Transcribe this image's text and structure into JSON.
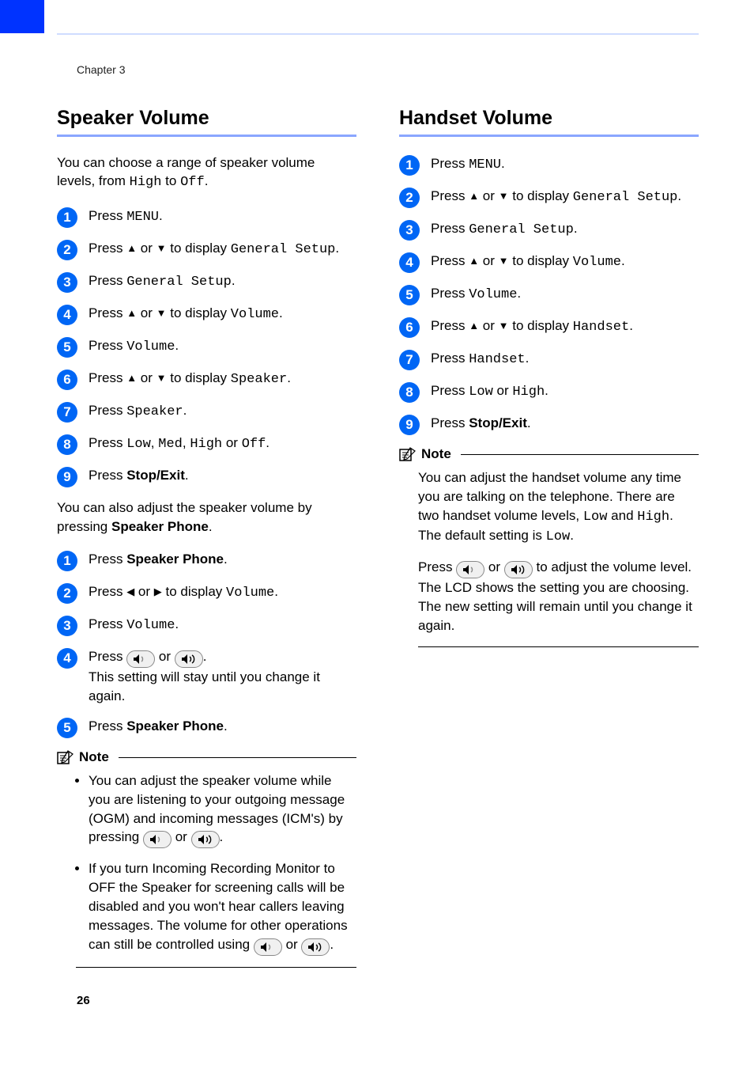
{
  "chapter_label": "Chapter 3",
  "page_number": "26",
  "colors": {
    "blue_tab": "#0033ff",
    "sidebar": "#cfdcff",
    "header_rule": "#cfdcff",
    "title_rule": "#8aa6ff",
    "step_circle_bg": "#0066f5",
    "step_circle_text": "#ffffff",
    "body_text": "#000000",
    "background": "#ffffff"
  },
  "left": {
    "title": "Speaker Volume",
    "intro_pre": "You can choose a range of speaker volume levels, from ",
    "intro_mono1": "High",
    "intro_mid": " to ",
    "intro_mono2": "Off",
    "intro_post": ".",
    "stepsA": [
      {
        "n": "1",
        "parts": [
          {
            "t": "Press "
          },
          {
            "t": "MENU",
            "mono": true
          },
          {
            "t": "."
          }
        ]
      },
      {
        "n": "2",
        "parts": [
          {
            "t": "Press "
          },
          {
            "t": "▲",
            "arr": true
          },
          {
            "t": " or "
          },
          {
            "t": "▼",
            "arr": true
          },
          {
            "t": " to display "
          },
          {
            "t": "General Setup",
            "mono": true
          },
          {
            "t": "."
          }
        ]
      },
      {
        "n": "3",
        "parts": [
          {
            "t": "Press "
          },
          {
            "t": "General Setup",
            "mono": true
          },
          {
            "t": "."
          }
        ]
      },
      {
        "n": "4",
        "parts": [
          {
            "t": "Press "
          },
          {
            "t": "▲",
            "arr": true
          },
          {
            "t": " or "
          },
          {
            "t": "▼",
            "arr": true
          },
          {
            "t": " to display "
          },
          {
            "t": "Volume",
            "mono": true
          },
          {
            "t": "."
          }
        ]
      },
      {
        "n": "5",
        "parts": [
          {
            "t": "Press "
          },
          {
            "t": "Volume",
            "mono": true
          },
          {
            "t": "."
          }
        ]
      },
      {
        "n": "6",
        "parts": [
          {
            "t": "Press "
          },
          {
            "t": "▲",
            "arr": true
          },
          {
            "t": " or "
          },
          {
            "t": "▼",
            "arr": true
          },
          {
            "t": " to display "
          },
          {
            "t": "Speaker",
            "mono": true
          },
          {
            "t": "."
          }
        ]
      },
      {
        "n": "7",
        "parts": [
          {
            "t": "Press "
          },
          {
            "t": "Speaker",
            "mono": true
          },
          {
            "t": "."
          }
        ]
      },
      {
        "n": "8",
        "parts": [
          {
            "t": "Press "
          },
          {
            "t": "Low",
            "mono": true
          },
          {
            "t": ", "
          },
          {
            "t": "Med",
            "mono": true
          },
          {
            "t": ", "
          },
          {
            "t": "High",
            "mono": true
          },
          {
            "t": " or "
          },
          {
            "t": "Off",
            "mono": true
          },
          {
            "t": "."
          }
        ]
      },
      {
        "n": "9",
        "parts": [
          {
            "t": "Press "
          },
          {
            "t": "Stop/Exit",
            "bold": true
          },
          {
            "t": "."
          }
        ]
      }
    ],
    "para2_pre": "You can also adjust the speaker volume by pressing ",
    "para2_bold": "Speaker Phone",
    "para2_post": ".",
    "stepsB": [
      {
        "n": "1",
        "parts": [
          {
            "t": "Press "
          },
          {
            "t": "Speaker Phone",
            "bold": true
          },
          {
            "t": "."
          }
        ]
      },
      {
        "n": "2",
        "parts": [
          {
            "t": "Press "
          },
          {
            "t": "◀",
            "arr": true
          },
          {
            "t": " or "
          },
          {
            "t": "▶",
            "arr": true
          },
          {
            "t": " to display "
          },
          {
            "t": "Volume",
            "mono": true
          },
          {
            "t": "."
          }
        ]
      },
      {
        "n": "3",
        "parts": [
          {
            "t": "Press "
          },
          {
            "t": "Volume",
            "mono": true
          },
          {
            "t": "."
          }
        ]
      },
      {
        "n": "4",
        "parts": [
          {
            "t": "Press "
          },
          {
            "vol": "down"
          },
          {
            "t": " or "
          },
          {
            "vol": "up"
          },
          {
            "t": "."
          },
          {
            "br": true
          },
          {
            "t": "This setting will stay until you change it again."
          }
        ]
      },
      {
        "n": "5",
        "parts": [
          {
            "t": "Press "
          },
          {
            "t": "Speaker Phone",
            "bold": true
          },
          {
            "t": "."
          }
        ]
      }
    ],
    "note_label": "Note",
    "note_bullets": [
      [
        {
          "t": "You can adjust the speaker volume while you are listening to your outgoing message (OGM) and incoming messages (ICM's) by pressing "
        },
        {
          "vol": "down"
        },
        {
          "t": " or "
        },
        {
          "vol": "up"
        },
        {
          "t": "."
        }
      ],
      [
        {
          "t": "If you turn Incoming Recording Monitor to OFF the Speaker for screening calls will be disabled and you won't hear callers leaving messages. The volume for other operations can still be controlled using "
        },
        {
          "vol": "down"
        },
        {
          "t": " or "
        },
        {
          "vol": "up"
        },
        {
          "t": "."
        }
      ]
    ]
  },
  "right": {
    "title": "Handset Volume",
    "steps": [
      {
        "n": "1",
        "parts": [
          {
            "t": "Press "
          },
          {
            "t": "MENU",
            "mono": true
          },
          {
            "t": "."
          }
        ]
      },
      {
        "n": "2",
        "parts": [
          {
            "t": "Press "
          },
          {
            "t": "▲",
            "arr": true
          },
          {
            "t": " or "
          },
          {
            "t": "▼",
            "arr": true
          },
          {
            "t": " to display "
          },
          {
            "t": "General Setup",
            "mono": true
          },
          {
            "t": "."
          }
        ]
      },
      {
        "n": "3",
        "parts": [
          {
            "t": "Press "
          },
          {
            "t": "General Setup",
            "mono": true
          },
          {
            "t": "."
          }
        ]
      },
      {
        "n": "4",
        "parts": [
          {
            "t": "Press "
          },
          {
            "t": "▲",
            "arr": true
          },
          {
            "t": " or "
          },
          {
            "t": "▼",
            "arr": true
          },
          {
            "t": " to display "
          },
          {
            "t": "Volume",
            "mono": true
          },
          {
            "t": "."
          }
        ]
      },
      {
        "n": "5",
        "parts": [
          {
            "t": "Press "
          },
          {
            "t": "Volume",
            "mono": true
          },
          {
            "t": "."
          }
        ]
      },
      {
        "n": "6",
        "parts": [
          {
            "t": "Press "
          },
          {
            "t": "▲",
            "arr": true
          },
          {
            "t": " or "
          },
          {
            "t": "▼",
            "arr": true
          },
          {
            "t": " to display "
          },
          {
            "t": "Handset",
            "mono": true
          },
          {
            "t": "."
          }
        ]
      },
      {
        "n": "7",
        "parts": [
          {
            "t": "Press "
          },
          {
            "t": "Handset",
            "mono": true
          },
          {
            "t": "."
          }
        ]
      },
      {
        "n": "8",
        "parts": [
          {
            "t": "Press "
          },
          {
            "t": "Low",
            "mono": true
          },
          {
            "t": " or "
          },
          {
            "t": "High",
            "mono": true
          },
          {
            "t": "."
          }
        ]
      },
      {
        "n": "9",
        "parts": [
          {
            "t": "Press "
          },
          {
            "t": "Stop/Exit",
            "bold": true
          },
          {
            "t": "."
          }
        ]
      }
    ],
    "note_label": "Note",
    "note_p1": [
      {
        "t": "You can adjust the handset volume any time you are talking on the telephone. There are two handset volume levels, "
      },
      {
        "t": "Low",
        "mono": true
      },
      {
        "t": " and "
      },
      {
        "t": "High",
        "mono": true
      },
      {
        "t": ". The default setting is "
      },
      {
        "t": "Low",
        "mono": true
      },
      {
        "t": "."
      }
    ],
    "note_p2": [
      {
        "t": "Press "
      },
      {
        "vol": "down"
      },
      {
        "t": " or "
      },
      {
        "vol": "up"
      },
      {
        "t": " to adjust the volume level. The LCD shows the setting you are choosing. The new setting will remain until you change it again."
      }
    ]
  }
}
